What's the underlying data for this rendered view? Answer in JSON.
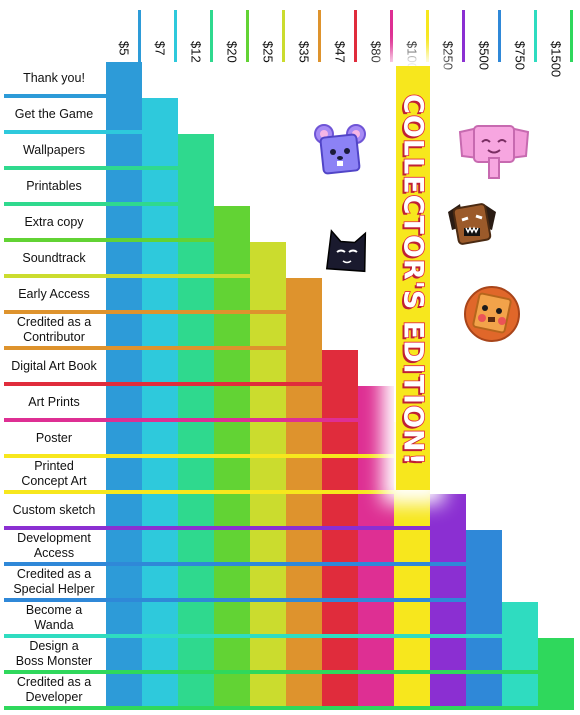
{
  "banner": {
    "text": "COLLECTOR'S EDITION!"
  },
  "tiers": [
    {
      "price": "$5",
      "color": "#2d9bd8"
    },
    {
      "price": "$7",
      "color": "#2ec9dc"
    },
    {
      "price": "$12",
      "color": "#2fd98e"
    },
    {
      "price": "$20",
      "color": "#62d334"
    },
    {
      "price": "$25",
      "color": "#cbdc2e"
    },
    {
      "price": "$35",
      "color": "#de932d"
    },
    {
      "price": "$47",
      "color": "#e02c3c"
    },
    {
      "price": "$80",
      "color": "#de2f93"
    },
    {
      "price": "$100",
      "color": "#f7e71d"
    },
    {
      "price": "$250",
      "color": "#8b2fd2"
    },
    {
      "price": "$500",
      "color": "#2f88d8"
    },
    {
      "price": "$750",
      "color": "#2fdcc0"
    },
    {
      "price": "$1500",
      "color": "#2fd85c"
    }
  ],
  "rewards": [
    {
      "label": "Thank you!",
      "tier": 0
    },
    {
      "label": "Get the Game",
      "tier": 1
    },
    {
      "label": "Wallpapers",
      "tier": 2
    },
    {
      "label": "Printables",
      "tier": 2
    },
    {
      "label": "Extra copy",
      "tier": 3
    },
    {
      "label": "Soundtrack",
      "tier": 4
    },
    {
      "label": "Early Access",
      "tier": 5
    },
    {
      "label": "Credited as a\nContributor",
      "tier": 5
    },
    {
      "label": "Digital Art Book",
      "tier": 6
    },
    {
      "label": "Art Prints",
      "tier": 7
    },
    {
      "label": "Poster",
      "tier": 8
    },
    {
      "label": "Printed\nConcept Art",
      "tier": 8
    },
    {
      "label": "Custom sketch",
      "tier": 9
    },
    {
      "label": "Development\nAccess",
      "tier": 10
    },
    {
      "label": "Credited as a\nSpecial Helper",
      "tier": 10
    },
    {
      "label": "Become a\nWanda",
      "tier": 11
    },
    {
      "label": "Design a\nBoss Monster",
      "tier": 12
    },
    {
      "label": "Credited as a\nDeveloper",
      "tier": 12
    }
  ],
  "critters": [
    {
      "icon": "purple-mouse-icon"
    },
    {
      "icon": "pink-elephant-icon"
    },
    {
      "icon": "brown-dog-icon"
    },
    {
      "icon": "black-cat-icon"
    },
    {
      "icon": "orange-lion-icon"
    }
  ]
}
